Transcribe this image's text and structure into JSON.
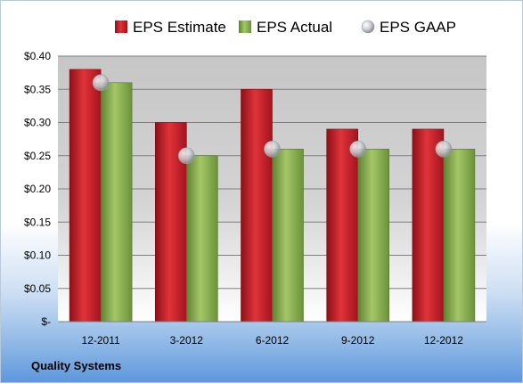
{
  "chart_data": {
    "type": "bar",
    "categories": [
      "12-2011",
      "3-2012",
      "6-2012",
      "9-2012",
      "12-2012"
    ],
    "series": [
      {
        "name": "EPS Estimate",
        "kind": "bar",
        "color": "#c8202a",
        "values": [
          0.38,
          0.3,
          0.35,
          0.29,
          0.29
        ]
      },
      {
        "name": "EPS Actual",
        "kind": "bar",
        "color": "#8db356",
        "values": [
          0.36,
          0.25,
          0.26,
          0.26,
          0.26
        ]
      },
      {
        "name": "EPS GAAP",
        "kind": "marker",
        "color": "#c9ccd1",
        "values": [
          0.36,
          0.25,
          0.26,
          0.26,
          0.26
        ]
      }
    ],
    "ylim": [
      0,
      0.4
    ],
    "yticks": [
      0,
      0.05,
      0.1,
      0.15,
      0.2,
      0.25,
      0.3,
      0.35,
      0.4
    ],
    "ytick_labels": [
      "$-",
      "$0.05",
      "$0.10",
      "$0.15",
      "$0.20",
      "$0.25",
      "$0.30",
      "$0.35",
      "$0.40"
    ],
    "grid": true,
    "legend_position": "top"
  },
  "source_label": "Quality Systems"
}
